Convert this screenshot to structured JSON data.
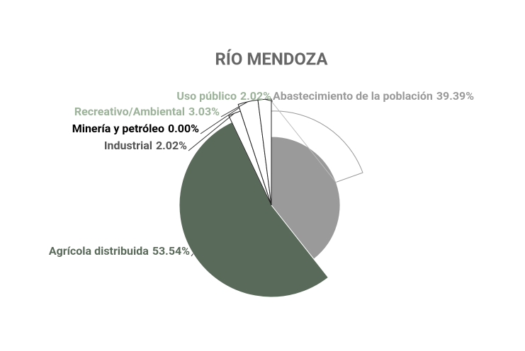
{
  "chart_data": {
    "type": "pie",
    "title": "RÍO MENDOZA",
    "categories": [
      "Abastecimiento de la población",
      "Agrícola distribuida",
      "Industrial",
      "Minería y petróleo",
      "Recreativo/Ambiental",
      "Uso público"
    ],
    "values": [
      39.39,
      53.54,
      2.02,
      0.0,
      3.03,
      2.02
    ],
    "value_labels": [
      "39.39%",
      "53.54%",
      "2.02%",
      "0.00%",
      "3.03%",
      "2.02%"
    ],
    "colors": [
      "#9a9a9a",
      "#5a6a5a",
      "#ffffff",
      "#ffffff",
      "#ffffff",
      "#ffffff"
    ],
    "label_colors": [
      "#9a9a9a",
      "#5a6a5a",
      "#555555",
      "#000000",
      "#9cb39a",
      "#9cb39a"
    ]
  }
}
